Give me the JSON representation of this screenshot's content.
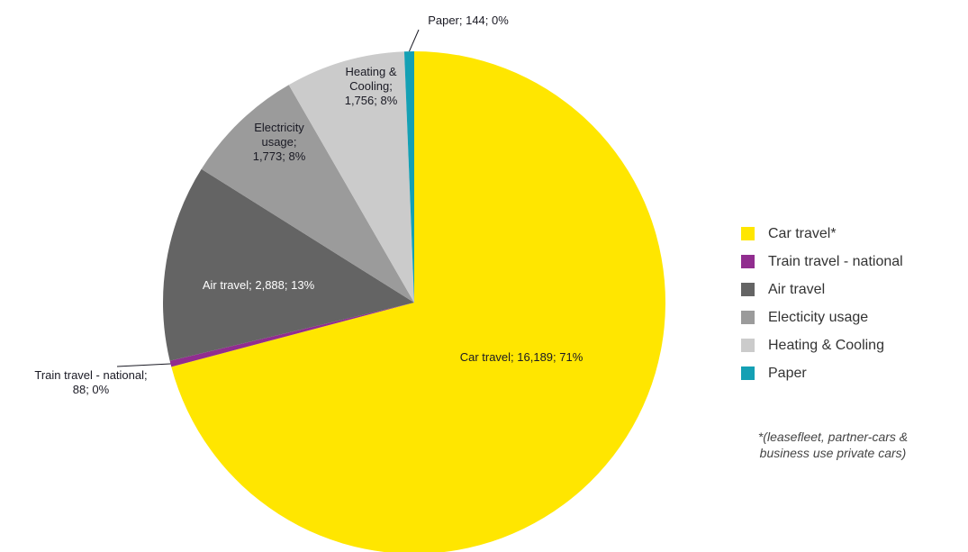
{
  "chart_data": {
    "type": "pie",
    "categories": [
      "Car travel*",
      "Train travel - national",
      "Air travel",
      "Electicity usage",
      "Heating & Cooling",
      "Paper"
    ],
    "values": [
      16189,
      88,
      2888,
      1773,
      1756,
      144
    ],
    "percents": [
      "71%",
      "0%",
      "13%",
      "8%",
      "8%",
      "0%"
    ],
    "colors": [
      "#FFE600",
      "#912D8F",
      "#646464",
      "#9B9B9B",
      "#CBCBCB",
      "#14A0B4"
    ],
    "data_labels": [
      [
        "Car travel; 16,189; 71%"
      ],
      [
        "Train travel - national;",
        "88; 0%"
      ],
      [
        "Air travel; 2,888; 13%"
      ],
      [
        "Electricity",
        "usage;",
        "1,773; 8%"
      ],
      [
        "Heating &",
        "Cooling;",
        "1,756; 8%"
      ],
      [
        "Paper; 144; 0%"
      ]
    ],
    "legend_position": "right",
    "footnote": [
      "*(leasefleet, partner-cars &",
      "business use private cars)"
    ]
  }
}
